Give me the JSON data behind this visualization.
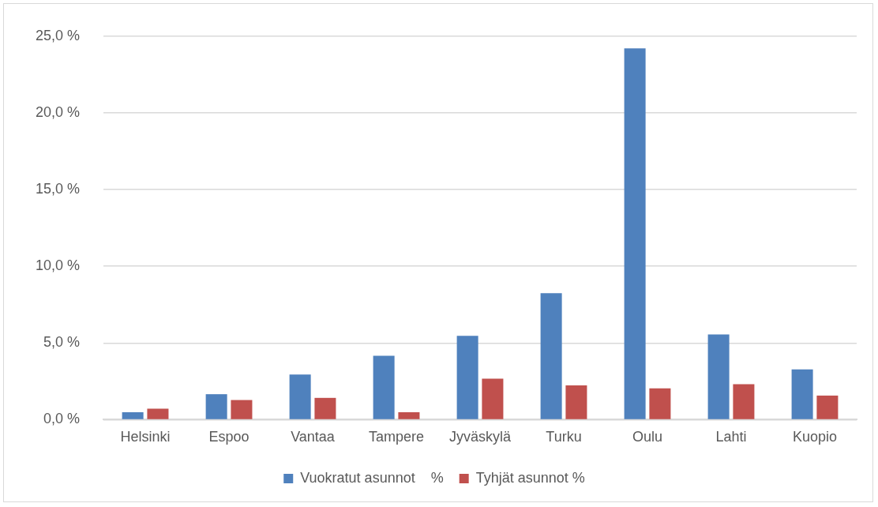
{
  "chart_data": {
    "type": "bar",
    "categories": [
      "Helsinki",
      "Espoo",
      "Vantaa",
      "Tampere",
      "Jyväskylä",
      "Turku",
      "Oulu",
      "Lahti",
      "Kuopio"
    ],
    "series": [
      {
        "name": "Vuokratut asunnot    %",
        "color": "#4f81bd",
        "values": [
          0.49,
          1.66,
          2.94,
          4.16,
          5.47,
          8.24,
          24.2,
          5.55,
          3.28
        ]
      },
      {
        "name": "Tyhjät asunnot %",
        "color": "#c0504d",
        "values": [
          0.72,
          1.28,
          1.42,
          0.48,
          2.67,
          2.24,
          2.04,
          2.31,
          1.57
        ]
      }
    ],
    "ylim": [
      0,
      25
    ],
    "yticks": [
      {
        "value": 0,
        "label": "0,0 %"
      },
      {
        "value": 5,
        "label": "5,0 %"
      },
      {
        "value": 10,
        "label": "10,0 %"
      },
      {
        "value": 15,
        "label": "15,0 %"
      },
      {
        "value": 20,
        "label": "20,0 %"
      },
      {
        "value": 25,
        "label": "25,0 %"
      }
    ],
    "grid": "y",
    "legend": "bottom"
  }
}
